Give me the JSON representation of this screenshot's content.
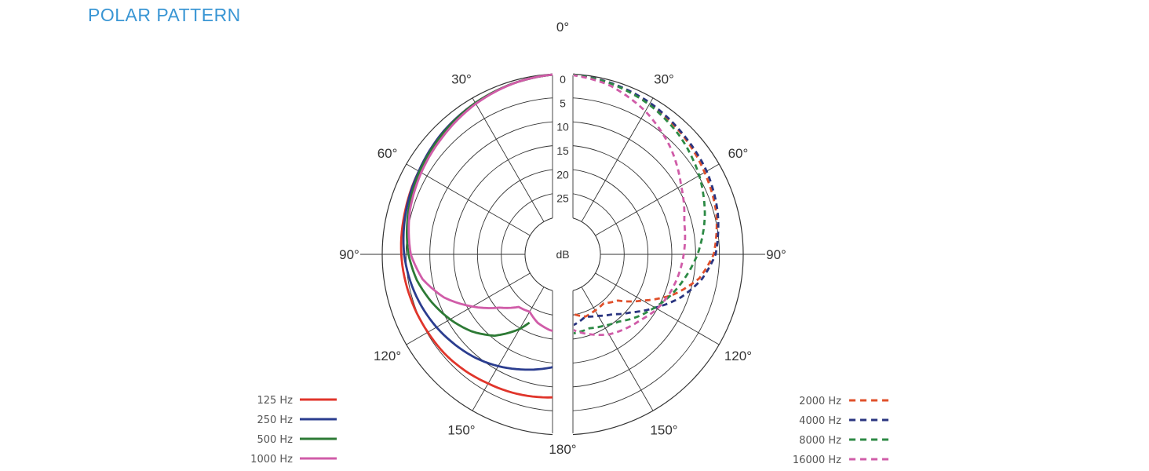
{
  "page": {
    "title": "POLAR PATTERN",
    "title_color": "#3a96d4"
  },
  "chart_data": {
    "type": "polar",
    "title": "POLAR PATTERN",
    "angle_labels": [
      "0°",
      "30°",
      "60°",
      "90°",
      "120°",
      "150°",
      "180°",
      "30°",
      "60°",
      "90°",
      "120°",
      "150°"
    ],
    "radial_labels": [
      "0",
      "5",
      "10",
      "15",
      "20",
      "25"
    ],
    "radial_unit": "dB",
    "angle_ticks_deg": [
      0,
      30,
      60,
      90,
      120,
      150,
      180
    ],
    "radial_range_db": [
      0,
      30
    ],
    "grid": true,
    "legend_placement": "bottom-left and bottom-right",
    "series": [
      {
        "name": "125 Hz",
        "color": "#e0352b",
        "style": "solid",
        "side": "left",
        "angles": [
          0,
          15,
          30,
          45,
          60,
          75,
          90,
          100,
          110,
          120,
          130,
          140,
          150,
          160,
          170,
          180
        ],
        "values": [
          0,
          0.5,
          1.2,
          2,
          3,
          3.6,
          4,
          4.4,
          4.8,
          5.2,
          5.5,
          6,
          6.6,
          7,
          7.5,
          8
        ]
      },
      {
        "name": "250 Hz",
        "color": "#2b3d8f",
        "style": "solid",
        "side": "left",
        "angles": [
          0,
          15,
          30,
          45,
          60,
          75,
          90,
          100,
          110,
          120,
          130,
          140,
          150,
          160,
          170,
          180
        ],
        "values": [
          0,
          0.5,
          1.2,
          2,
          3,
          3.8,
          4.6,
          5.4,
          6.3,
          7.3,
          8.4,
          9.5,
          10.8,
          12.2,
          13.5,
          14.8
        ]
      },
      {
        "name": "500 Hz",
        "color": "#2d7a35",
        "style": "solid",
        "side": "left",
        "angles": [
          0,
          15,
          30,
          45,
          60,
          75,
          90,
          100,
          110,
          120,
          130,
          140,
          150,
          155
        ],
        "values": [
          0,
          0.5,
          1.2,
          2.2,
          3.2,
          4.3,
          5.5,
          6.8,
          8.6,
          10.6,
          12.8,
          15.6,
          19.8,
          22.5
        ]
      },
      {
        "name": "1000 Hz",
        "color": "#d05ca8",
        "style": "solid",
        "side": "left",
        "angles": [
          0,
          15,
          30,
          45,
          60,
          75,
          90,
          100,
          110,
          120,
          130,
          140,
          150,
          160,
          170,
          180
        ],
        "values": [
          0,
          0.5,
          1.4,
          2.6,
          3.6,
          4.6,
          6,
          8,
          11.4,
          16,
          20.5,
          23.5,
          24,
          22.6,
          21.8,
          21.4
        ]
      },
      {
        "name": "2000 Hz",
        "color": "#e0502b",
        "style": "dashed",
        "side": "right",
        "angles": [
          0,
          15,
          30,
          45,
          60,
          75,
          90,
          100,
          110,
          120,
          130,
          140,
          150,
          160,
          170,
          180
        ],
        "values": [
          0,
          0.5,
          1.4,
          2.4,
          3.5,
          4.5,
          6.2,
          8.8,
          13.2,
          18.5,
          22.8,
          24.5,
          24.3,
          24,
          25.2,
          26
        ]
      },
      {
        "name": "4000 Hz",
        "color": "#2a3580",
        "style": "dashed",
        "side": "right",
        "angles": [
          0,
          15,
          30,
          45,
          60,
          75,
          90,
          100,
          110,
          120,
          130,
          140,
          150,
          160,
          170,
          180
        ],
        "values": [
          0,
          0.5,
          1.2,
          2.2,
          3,
          4.2,
          5.8,
          8.2,
          11.5,
          15.5,
          19,
          21.5,
          23,
          24,
          23,
          22.5
        ]
      },
      {
        "name": "8000 Hz",
        "color": "#2d8a45",
        "style": "dashed",
        "side": "right",
        "angles": [
          0,
          15,
          30,
          45,
          60,
          75,
          90,
          100,
          110,
          120,
          130,
          140,
          150,
          160,
          170,
          180
        ],
        "values": [
          0,
          0.6,
          1.6,
          3,
          4.8,
          7,
          9.6,
          11.6,
          13.5,
          15.6,
          17.5,
          19.5,
          20.6,
          21.4,
          21.2,
          21
        ]
      },
      {
        "name": "16000 Hz",
        "color": "#d05ca8",
        "style": "dashed",
        "side": "right",
        "angles": [
          0,
          15,
          30,
          45,
          60,
          75,
          90,
          100,
          110,
          120,
          130,
          140,
          150,
          160,
          170,
          175
        ],
        "values": [
          0,
          1,
          3.2,
          6,
          9.2,
          11.5,
          12.5,
          13.2,
          14,
          15,
          16.5,
          17.5,
          18.5,
          20,
          21.5,
          22.5
        ]
      }
    ]
  }
}
